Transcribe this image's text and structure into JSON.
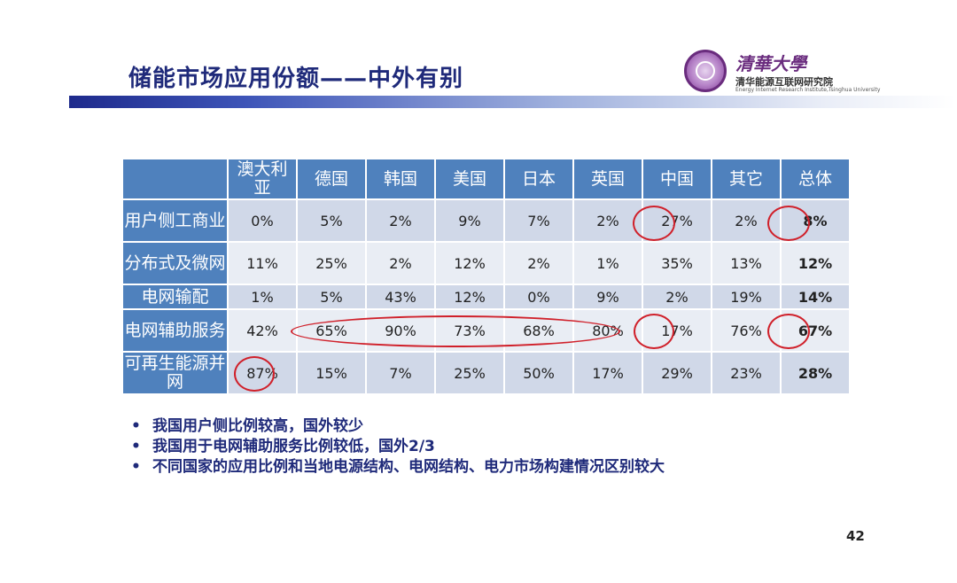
{
  "slide": {
    "title": "储能市场应用份额——中外有别",
    "page_number": "42"
  },
  "logo": {
    "university": "清華大學",
    "institute": "清华能源互联网研究院",
    "institute_en": "Energy Internet Research Institute,Tsinghua University"
  },
  "table": {
    "columns": [
      "澳大利亚",
      "德国",
      "韩国",
      "美国",
      "日本",
      "英国",
      "中国",
      "其它",
      "总体"
    ],
    "rows": [
      {
        "label": "用户侧工商业",
        "values": [
          "0%",
          "5%",
          "2%",
          "9%",
          "7%",
          "2%",
          "27%",
          "2%",
          "8%"
        ]
      },
      {
        "label": "分布式及微网",
        "values": [
          "11%",
          "25%",
          "2%",
          "12%",
          "2%",
          "1%",
          "35%",
          "13%",
          "12%"
        ]
      },
      {
        "label": "电网输配",
        "values": [
          "1%",
          "5%",
          "43%",
          "12%",
          "0%",
          "9%",
          "2%",
          "19%",
          "14%"
        ]
      },
      {
        "label": "电网辅助服务",
        "values": [
          "42%",
          "65%",
          "90%",
          "73%",
          "68%",
          "80%",
          "17%",
          "76%",
          "67%"
        ]
      },
      {
        "label": "可再生能源并网",
        "values": [
          "87%",
          "15%",
          "7%",
          "25%",
          "50%",
          "17%",
          "29%",
          "23%",
          "28%"
        ]
      }
    ]
  },
  "bullets": [
    "我国用户侧比例较高，国外较少",
    "我国用于电网辅助服务比例较低，国外2/3",
    "不同国家的应用比例和当地电源结构、电网结构、电力市场构建情况区别较大"
  ],
  "bullet_symbol": "•",
  "colors": {
    "title": "#1f2a7a",
    "header_bg": "#4f81bd",
    "row_odd": "#d0d8e8",
    "row_even": "#e9edf4",
    "highlight_circle": "#d0202a"
  }
}
